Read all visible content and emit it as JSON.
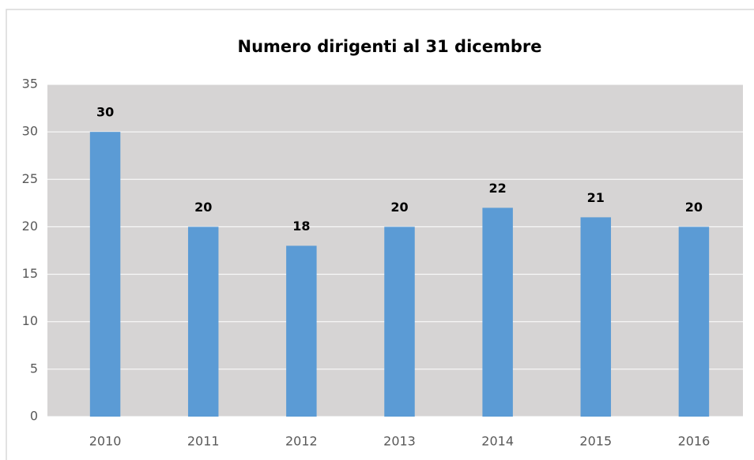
{
  "chart_data": {
    "type": "bar",
    "title": "Numero dirigenti al 31 dicembre",
    "categories": [
      "2010",
      "2011",
      "2012",
      "2013",
      "2014",
      "2015",
      "2016"
    ],
    "values": [
      30,
      20,
      18,
      20,
      22,
      21,
      20
    ],
    "color": "#5b9bd5",
    "ylim": [
      0,
      35
    ],
    "yticks": [
      0,
      5,
      10,
      15,
      20,
      25,
      30,
      35
    ],
    "grid": true
  }
}
